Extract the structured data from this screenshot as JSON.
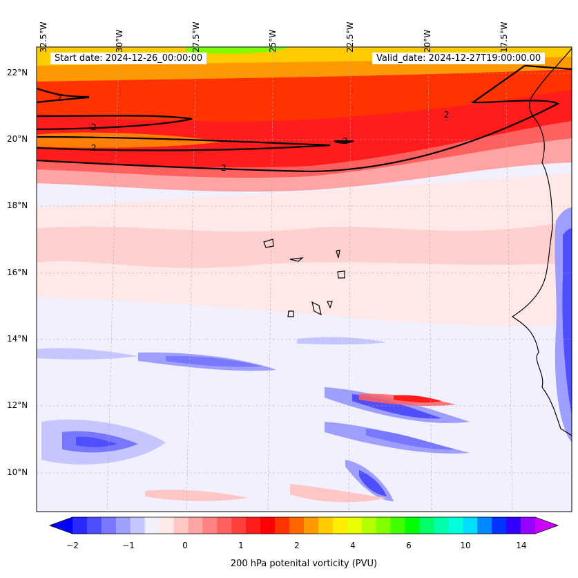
{
  "header": {
    "start_date": "Start date: 2024-12-26_00:00:00",
    "valid_date": "Valid_date: 2024-12-27T19:00:00.00"
  },
  "map": {
    "longitude_labels": [
      "32.5°W",
      "30°W",
      "27.5°W",
      "25°W",
      "22.5°W",
      "20°W",
      "17.5°W"
    ],
    "latitude_labels": [
      "22°N",
      "20°N",
      "18°N",
      "16°N",
      "14°N",
      "12°N",
      "10°N"
    ],
    "contour_label": "2",
    "land_color": "#ffe8e8",
    "ocean_background": "#f0f0ff"
  },
  "colorbar": {
    "label": "200 hPa potenital vorticity (PVU)",
    "tick_labels": [
      "−2",
      "−1",
      "0",
      "1",
      "2",
      "4",
      "6",
      "10",
      "14"
    ],
    "colors": [
      "#0000ff",
      "#2828ff",
      "#4f4fff",
      "#7777ff",
      "#9e9eff",
      "#c6c6ff",
      "#f0f0ff",
      "#ffe8e8",
      "#ffc6c6",
      "#ffa4a4",
      "#ff8282",
      "#ff6060",
      "#ff3e3e",
      "#ff1c1c",
      "#ff0000",
      "#ff3300",
      "#ff6600",
      "#ff9900",
      "#ffcc00",
      "#ffee00",
      "#e8ff00",
      "#b4ff00",
      "#80ff00",
      "#40ff00",
      "#00ff00",
      "#00ff66",
      "#00ffaa",
      "#00ffdd",
      "#00ddff",
      "#0088ff",
      "#0033ff",
      "#3300ff",
      "#9900ff",
      "#cc00ff"
    ]
  }
}
